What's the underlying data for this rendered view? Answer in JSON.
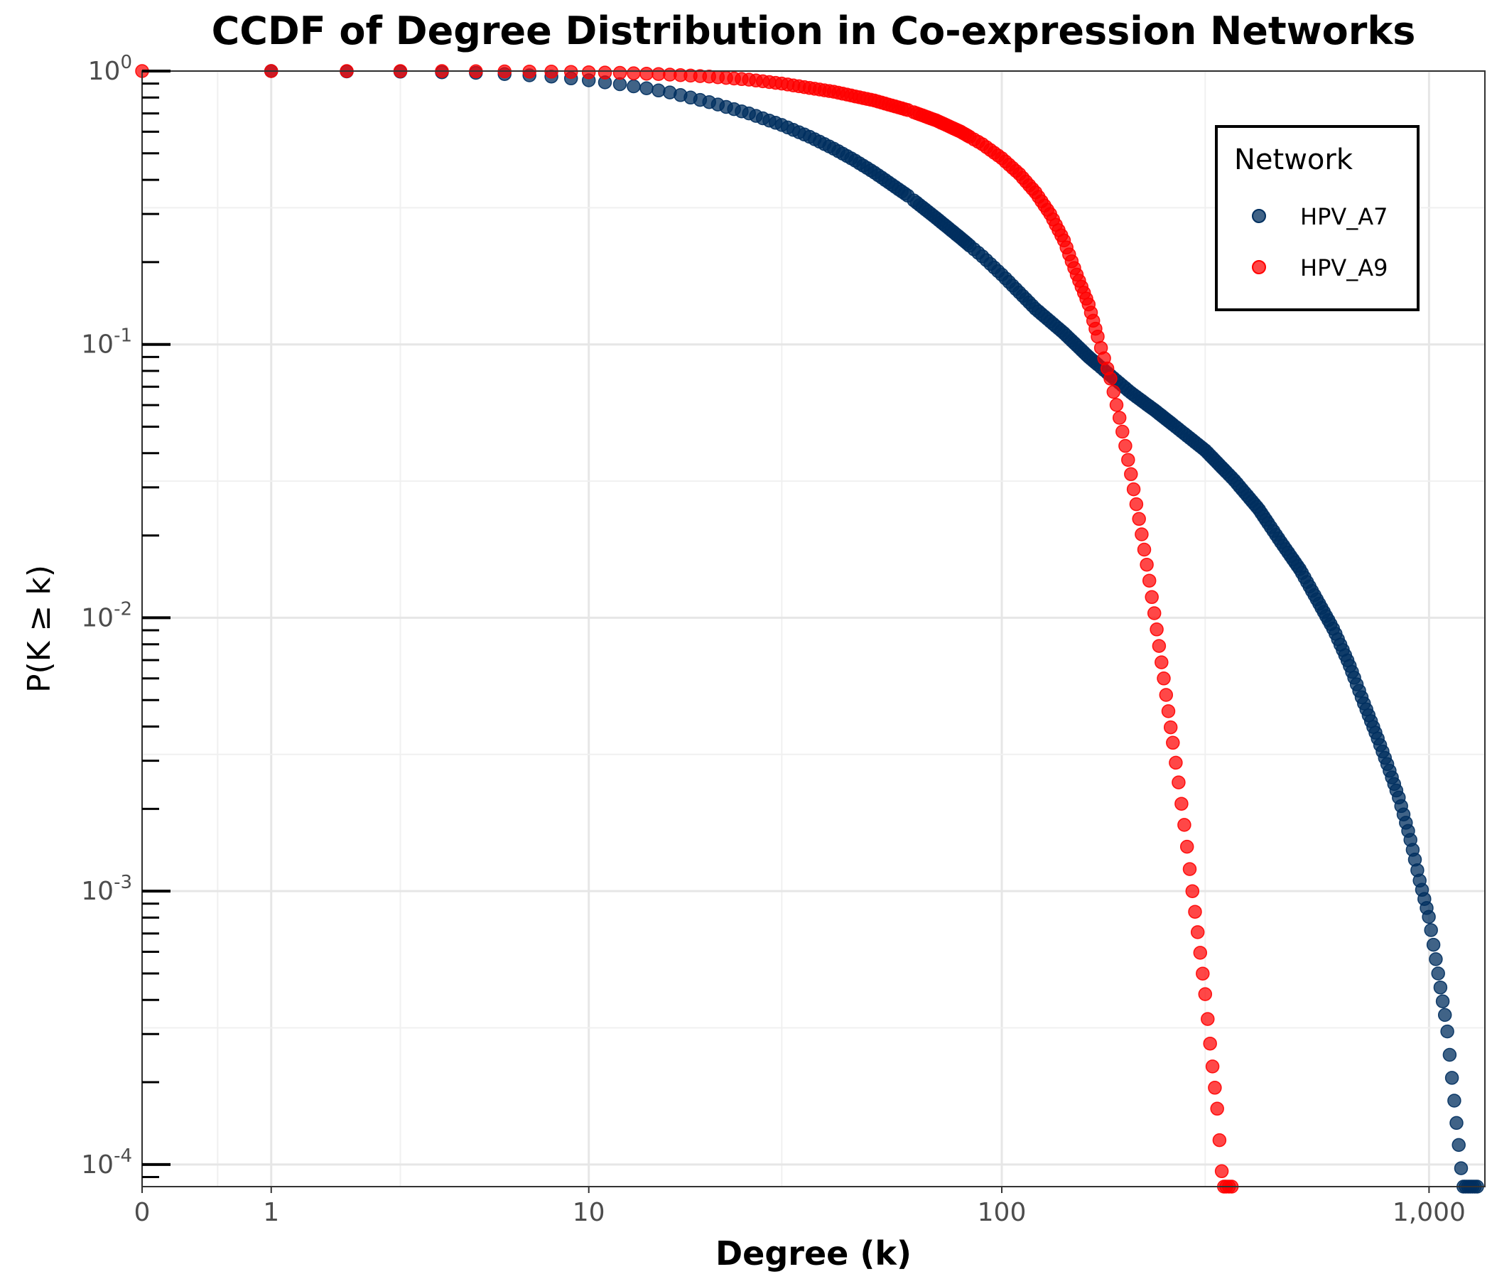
{
  "chart_data": {
    "type": "scatter",
    "title": "CCDF of Degree Distribution in Co-expression Networks",
    "xlabel": "Degree (k)",
    "ylabel": "P(K ≥ k)",
    "x_scale": "log1p",
    "y_scale": "log",
    "xlim": [
      0,
      1350
    ],
    "ylim": [
      8.3e-05,
      1
    ],
    "x_ticks": [
      0,
      1,
      10,
      100,
      1000
    ],
    "x_tick_labels": [
      "0",
      "1",
      "10",
      "100",
      "1,000"
    ],
    "y_ticks": [
      1,
      0.1,
      0.01,
      0.001,
      0.0001
    ],
    "y_tick_labels": [
      {
        "base": "10",
        "exp": "0"
      },
      {
        "base": "10",
        "exp": "-1"
      },
      {
        "base": "10",
        "exp": "-2"
      },
      {
        "base": "10",
        "exp": "-3"
      },
      {
        "base": "10",
        "exp": "-4"
      }
    ],
    "grid": true,
    "legend": {
      "title": "Network",
      "position": "top-right"
    },
    "series": [
      {
        "name": "HPV_A7",
        "color": "#002f5f",
        "points": [
          [
            1,
            1
          ],
          [
            2,
            0.997
          ],
          [
            3,
            0.995
          ],
          [
            4,
            0.99
          ],
          [
            5,
            0.985
          ],
          [
            6,
            0.975
          ],
          [
            7,
            0.965
          ],
          [
            8,
            0.955
          ],
          [
            9,
            0.94
          ],
          [
            10,
            0.925
          ],
          [
            12,
            0.895
          ],
          [
            14,
            0.865
          ],
          [
            16,
            0.835
          ],
          [
            18,
            0.8
          ],
          [
            20,
            0.77
          ],
          [
            25,
            0.7
          ],
          [
            30,
            0.635
          ],
          [
            35,
            0.575
          ],
          [
            40,
            0.52
          ],
          [
            45,
            0.47
          ],
          [
            50,
            0.425
          ],
          [
            60,
            0.35
          ],
          [
            70,
            0.29
          ],
          [
            80,
            0.245
          ],
          [
            90,
            0.21
          ],
          [
            100,
            0.18
          ],
          [
            120,
            0.135
          ],
          [
            140,
            0.11
          ],
          [
            160,
            0.09
          ],
          [
            180,
            0.077
          ],
          [
            200,
            0.067
          ],
          [
            230,
            0.057
          ],
          [
            260,
            0.049
          ],
          [
            300,
            0.041
          ],
          [
            350,
            0.032
          ],
          [
            400,
            0.025
          ],
          [
            450,
            0.019
          ],
          [
            500,
            0.015
          ],
          [
            550,
            0.0115
          ],
          [
            600,
            0.009
          ],
          [
            650,
            0.0068
          ],
          [
            700,
            0.005
          ],
          [
            750,
            0.0038
          ],
          [
            800,
            0.0029
          ],
          [
            850,
            0.0022
          ],
          [
            900,
            0.0016
          ],
          [
            950,
            0.0011
          ],
          [
            1000,
            0.0008
          ],
          [
            1050,
            0.0005
          ],
          [
            1100,
            0.00032
          ],
          [
            1150,
            0.00016
          ],
          [
            1200,
            8.3e-05
          ],
          [
            1300,
            8.3e-05
          ]
        ]
      },
      {
        "name": "HPV_A9",
        "color": "#ff0000",
        "points": [
          [
            0,
            1
          ],
          [
            1,
            1
          ],
          [
            2,
            1
          ],
          [
            3,
            1
          ],
          [
            4,
            1
          ],
          [
            5,
            0.998
          ],
          [
            6,
            0.997
          ],
          [
            7,
            0.996
          ],
          [
            8,
            0.995
          ],
          [
            9,
            0.993
          ],
          [
            10,
            0.99
          ],
          [
            12,
            0.985
          ],
          [
            15,
            0.975
          ],
          [
            20,
            0.955
          ],
          [
            25,
            0.93
          ],
          [
            30,
            0.9
          ],
          [
            40,
            0.84
          ],
          [
            50,
            0.78
          ],
          [
            60,
            0.72
          ],
          [
            70,
            0.66
          ],
          [
            80,
            0.6
          ],
          [
            90,
            0.54
          ],
          [
            100,
            0.48
          ],
          [
            110,
            0.42
          ],
          [
            120,
            0.36
          ],
          [
            130,
            0.3
          ],
          [
            140,
            0.24
          ],
          [
            150,
            0.18
          ],
          [
            160,
            0.14
          ],
          [
            170,
            0.1
          ],
          [
            180,
            0.075
          ],
          [
            190,
            0.052
          ],
          [
            200,
            0.035
          ],
          [
            210,
            0.023
          ],
          [
            220,
            0.015
          ],
          [
            230,
            0.0095
          ],
          [
            240,
            0.006
          ],
          [
            250,
            0.0038
          ],
          [
            260,
            0.0025
          ],
          [
            270,
            0.0016
          ],
          [
            280,
            0.001
          ],
          [
            290,
            0.00065
          ],
          [
            300,
            0.00042
          ],
          [
            310,
            0.00025
          ],
          [
            320,
            0.00016
          ],
          [
            330,
            8.3e-05
          ],
          [
            350,
            8.3e-05
          ]
        ]
      }
    ]
  }
}
